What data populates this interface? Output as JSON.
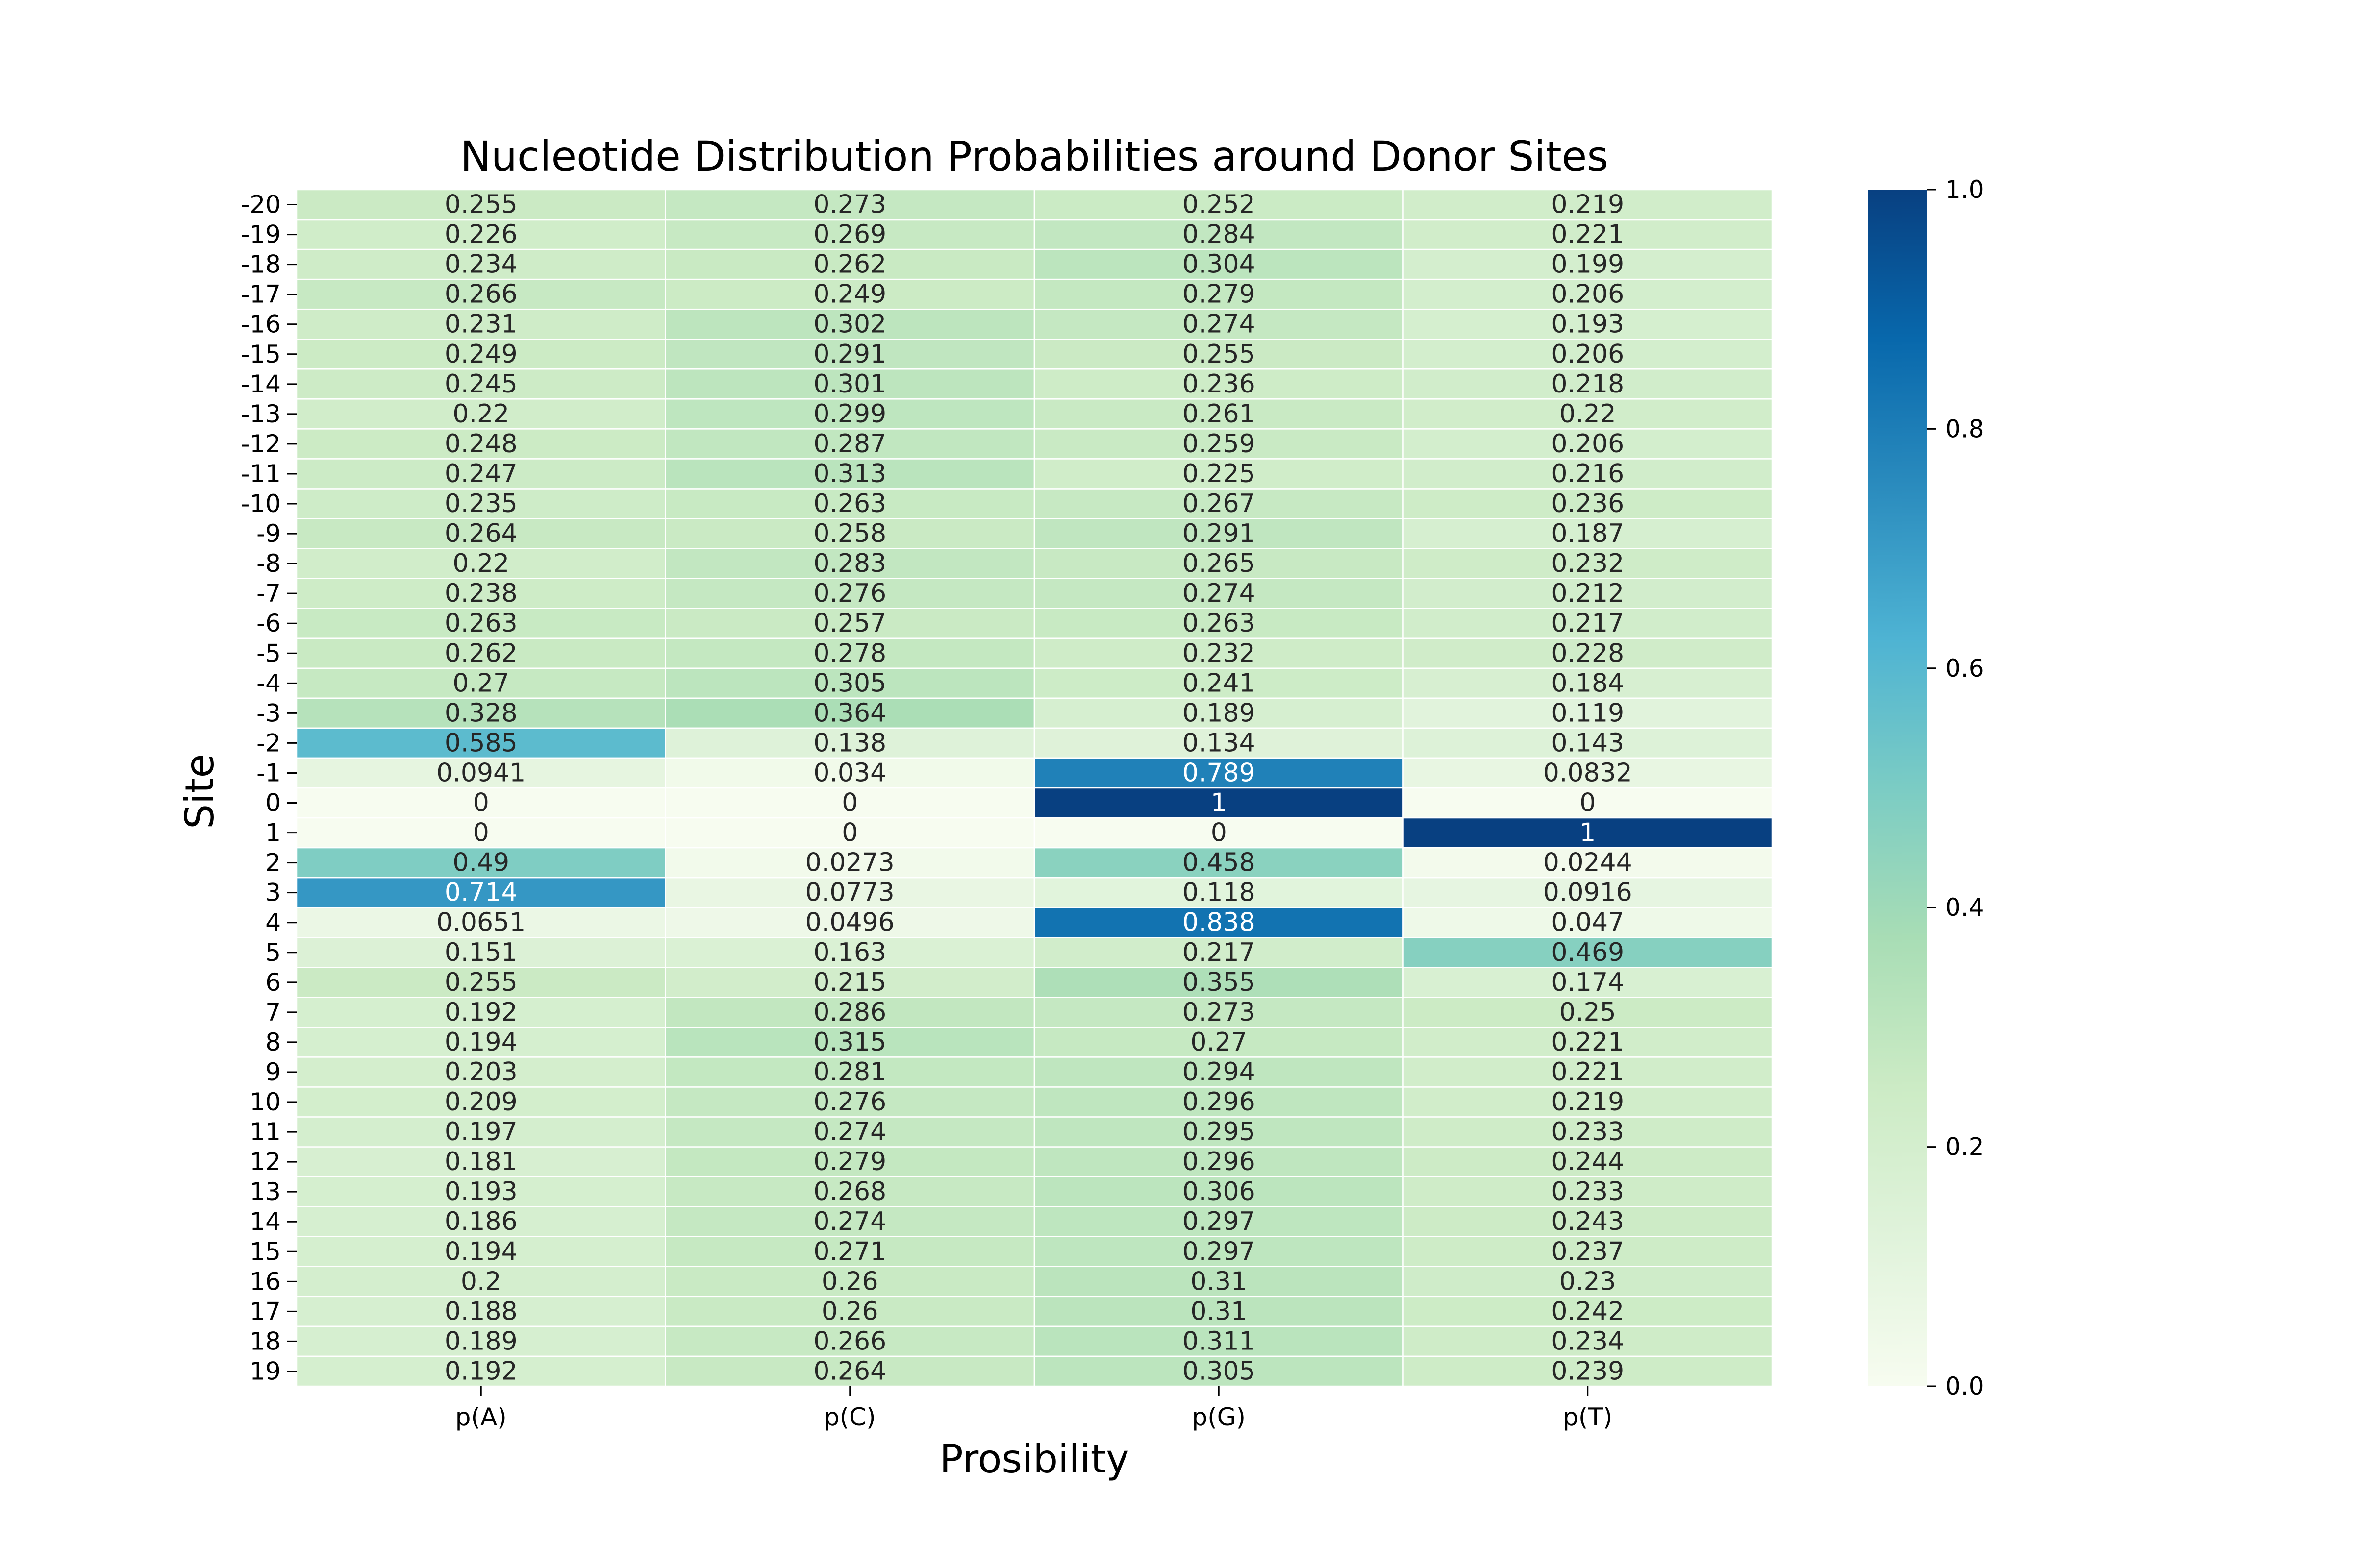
{
  "chart_data": {
    "type": "heatmap",
    "title": "Nucleotide Distribution Probabilities around Donor Sites",
    "xlabel": "Prosibility",
    "ylabel": "Site",
    "columns": [
      "p(A)",
      "p(C)",
      "p(G)",
      "p(T)"
    ],
    "rows": [
      "-20",
      "-19",
      "-18",
      "-17",
      "-16",
      "-15",
      "-14",
      "-13",
      "-12",
      "-11",
      "-10",
      "-9",
      "-8",
      "-7",
      "-6",
      "-5",
      "-4",
      "-3",
      "-2",
      "-1",
      "0",
      "1",
      "2",
      "3",
      "4",
      "5",
      "6",
      "7",
      "8",
      "9",
      "10",
      "11",
      "12",
      "13",
      "14",
      "15",
      "16",
      "17",
      "18",
      "19"
    ],
    "values": [
      [
        0.255,
        0.273,
        0.252,
        0.219
      ],
      [
        0.226,
        0.269,
        0.284,
        0.221
      ],
      [
        0.234,
        0.262,
        0.304,
        0.199
      ],
      [
        0.266,
        0.249,
        0.279,
        0.206
      ],
      [
        0.231,
        0.302,
        0.274,
        0.193
      ],
      [
        0.249,
        0.291,
        0.255,
        0.206
      ],
      [
        0.245,
        0.301,
        0.236,
        0.218
      ],
      [
        0.22,
        0.299,
        0.261,
        0.22
      ],
      [
        0.248,
        0.287,
        0.259,
        0.206
      ],
      [
        0.247,
        0.313,
        0.225,
        0.216
      ],
      [
        0.235,
        0.263,
        0.267,
        0.236
      ],
      [
        0.264,
        0.258,
        0.291,
        0.187
      ],
      [
        0.22,
        0.283,
        0.265,
        0.232
      ],
      [
        0.238,
        0.276,
        0.274,
        0.212
      ],
      [
        0.263,
        0.257,
        0.263,
        0.217
      ],
      [
        0.262,
        0.278,
        0.232,
        0.228
      ],
      [
        0.27,
        0.305,
        0.241,
        0.184
      ],
      [
        0.328,
        0.364,
        0.189,
        0.119
      ],
      [
        0.585,
        0.138,
        0.134,
        0.143
      ],
      [
        0.0941,
        0.034,
        0.789,
        0.0832
      ],
      [
        0,
        0,
        1,
        0
      ],
      [
        0,
        0,
        0,
        1
      ],
      [
        0.49,
        0.0273,
        0.458,
        0.0244
      ],
      [
        0.714,
        0.0773,
        0.118,
        0.0916
      ],
      [
        0.0651,
        0.0496,
        0.838,
        0.047
      ],
      [
        0.151,
        0.163,
        0.217,
        0.469
      ],
      [
        0.255,
        0.215,
        0.355,
        0.174
      ],
      [
        0.192,
        0.286,
        0.273,
        0.25
      ],
      [
        0.194,
        0.315,
        0.27,
        0.221
      ],
      [
        0.203,
        0.281,
        0.294,
        0.221
      ],
      [
        0.209,
        0.276,
        0.296,
        0.219
      ],
      [
        0.197,
        0.274,
        0.295,
        0.233
      ],
      [
        0.181,
        0.279,
        0.296,
        0.244
      ],
      [
        0.193,
        0.268,
        0.306,
        0.233
      ],
      [
        0.186,
        0.274,
        0.297,
        0.243
      ],
      [
        0.194,
        0.271,
        0.297,
        0.237
      ],
      [
        0.2,
        0.26,
        0.31,
        0.23
      ],
      [
        0.188,
        0.26,
        0.31,
        0.242
      ],
      [
        0.189,
        0.266,
        0.311,
        0.234
      ],
      [
        0.192,
        0.264,
        0.305,
        0.239
      ]
    ],
    "value_range": [
      0,
      1
    ],
    "colorbar": {
      "ticks": [
        "0.0",
        "0.2",
        "0.4",
        "0.6",
        "0.8",
        "1.0"
      ],
      "colormap": "GnBu",
      "stops": [
        "#f7fcf0",
        "#e0f3db",
        "#ccebc5",
        "#a8ddb5",
        "#7bccc4",
        "#4eb3d3",
        "#2b8cbe",
        "#0868ac",
        "#084081"
      ]
    },
    "annotations": true,
    "grid": false
  }
}
